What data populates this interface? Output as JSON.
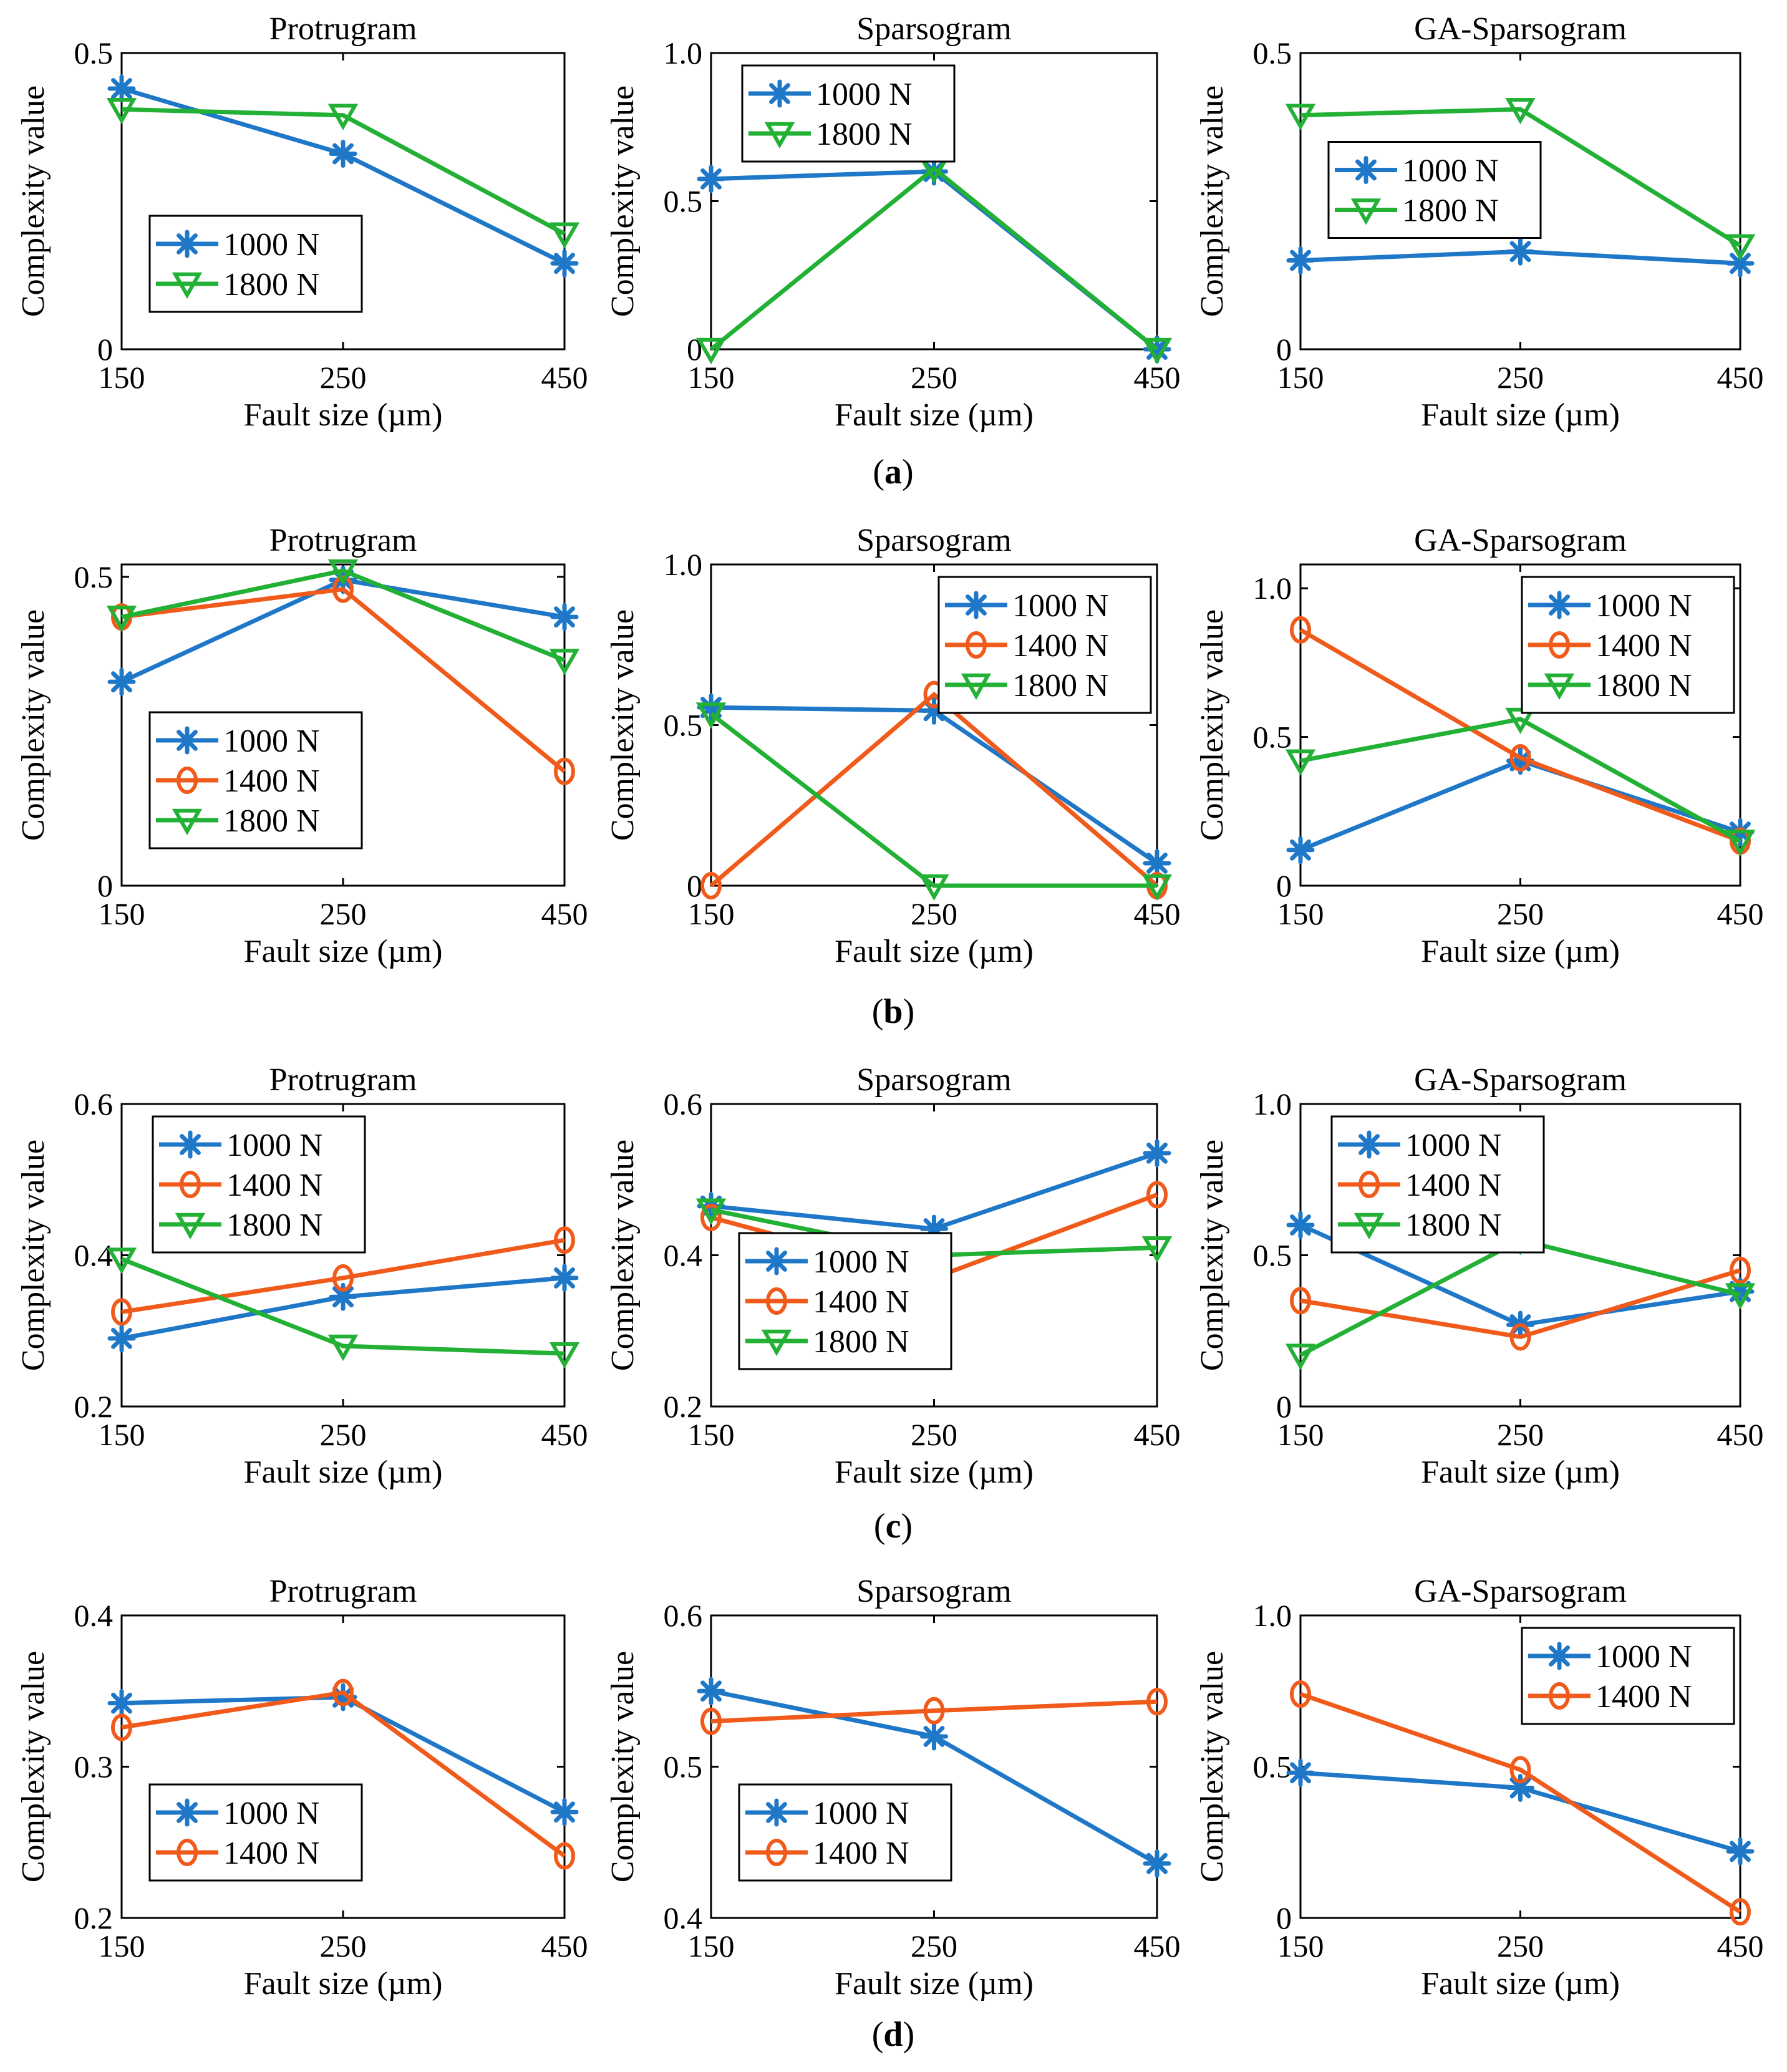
{
  "x_labels": [
    "150",
    "250",
    "450"
  ],
  "x_axis_label": "Fault size (µm)",
  "y_axis_label": "Complexity value",
  "series_styles": {
    "1000 N": {
      "color": "#1f77c8",
      "marker": "star"
    },
    "1400 N": {
      "color": "#f05a1a",
      "marker": "circle"
    },
    "1800 N": {
      "color": "#22b035",
      "marker": "triangle"
    }
  },
  "rows": [
    {
      "label": "(a)",
      "label_letter": "a"
    },
    {
      "label": "(b)",
      "label_letter": "b"
    },
    {
      "label": "(c)",
      "label_letter": "c"
    },
    {
      "label": "(d)",
      "label_letter": "d"
    }
  ],
  "chart_data": [
    {
      "type": "line",
      "row": 0,
      "col": 0,
      "title": "Protrugram",
      "xlabel": "Fault size (µm)",
      "ylabel": "Complexity value",
      "categories": [
        "150",
        "250",
        "450"
      ],
      "ylim": [
        0,
        0.5
      ],
      "yticks": [
        "0",
        "0.5"
      ],
      "ytick_values": [
        0,
        0.5
      ],
      "legend_position": "bottom-left",
      "series": [
        {
          "name": "1000 N",
          "values": [
            0.44,
            0.33,
            0.145
          ]
        },
        {
          "name": "1800 N",
          "values": [
            0.405,
            0.395,
            0.195
          ]
        }
      ]
    },
    {
      "type": "line",
      "row": 0,
      "col": 1,
      "title": "Sparsogram",
      "xlabel": "Fault size (µm)",
      "ylabel": "Complexity value",
      "categories": [
        "150",
        "250",
        "450"
      ],
      "ylim": [
        0,
        1.0
      ],
      "yticks": [
        "0",
        "0.5",
        "1.0"
      ],
      "ytick_values": [
        0,
        0.5,
        1.0
      ],
      "legend_position": "top-left",
      "series": [
        {
          "name": "1000 N",
          "values": [
            0.575,
            0.6,
            0.0
          ]
        },
        {
          "name": "1800 N",
          "values": [
            0.0,
            0.61,
            0.0
          ]
        }
      ]
    },
    {
      "type": "line",
      "row": 0,
      "col": 2,
      "title": "GA-Sparsogram",
      "xlabel": "Fault size (µm)",
      "ylabel": "Complexity value",
      "categories": [
        "150",
        "250",
        "450"
      ],
      "ylim": [
        0,
        0.5
      ],
      "yticks": [
        "0",
        "0.5"
      ],
      "ytick_values": [
        0,
        0.5
      ],
      "legend_position": "middle-left",
      "series": [
        {
          "name": "1000 N",
          "values": [
            0.15,
            0.165,
            0.145
          ]
        },
        {
          "name": "1800 N",
          "values": [
            0.395,
            0.405,
            0.175
          ]
        }
      ]
    },
    {
      "type": "line",
      "row": 1,
      "col": 0,
      "title": "Protrugram",
      "xlabel": "Fault size (µm)",
      "ylabel": "Complexity value",
      "categories": [
        "150",
        "250",
        "450"
      ],
      "ylim": [
        0,
        0.52
      ],
      "yticks": [
        "0",
        "0.5"
      ],
      "ytick_values": [
        0,
        0.5
      ],
      "legend_position": "bottom-left",
      "series": [
        {
          "name": "1000 N",
          "values": [
            0.33,
            0.495,
            0.435
          ]
        },
        {
          "name": "1400 N",
          "values": [
            0.435,
            0.48,
            0.185
          ]
        },
        {
          "name": "1800 N",
          "values": [
            0.435,
            0.51,
            0.365
          ]
        }
      ]
    },
    {
      "type": "line",
      "row": 1,
      "col": 1,
      "title": "Sparsogram",
      "xlabel": "Fault size (µm)",
      "ylabel": "Complexity value",
      "categories": [
        "150",
        "250",
        "450"
      ],
      "ylim": [
        0,
        1.0
      ],
      "yticks": [
        "0",
        "0.5",
        "1.0"
      ],
      "ytick_values": [
        0,
        0.5,
        1.0
      ],
      "legend_position": "top-right",
      "series": [
        {
          "name": "1000 N",
          "values": [
            0.555,
            0.545,
            0.07
          ]
        },
        {
          "name": "1400 N",
          "values": [
            0.0,
            0.595,
            0.0
          ]
        },
        {
          "name": "1800 N",
          "values": [
            0.535,
            0.0,
            0.0
          ]
        }
      ]
    },
    {
      "type": "line",
      "row": 1,
      "col": 2,
      "title": "GA-Sparsogram",
      "xlabel": "Fault size (µm)",
      "ylabel": "Complexity value",
      "categories": [
        "150",
        "250",
        "450"
      ],
      "ylim": [
        0,
        1.08
      ],
      "yticks": [
        "0",
        "0.5",
        "1.0"
      ],
      "ytick_values": [
        0,
        0.5,
        1.0
      ],
      "legend_position": "top-right",
      "series": [
        {
          "name": "1000 N",
          "values": [
            0.12,
            0.42,
            0.18
          ]
        },
        {
          "name": "1400 N",
          "values": [
            0.86,
            0.43,
            0.15
          ]
        },
        {
          "name": "1800 N",
          "values": [
            0.42,
            0.56,
            0.15
          ]
        }
      ]
    },
    {
      "type": "line",
      "row": 2,
      "col": 0,
      "title": "Protrugram",
      "xlabel": "Fault size (µm)",
      "ylabel": "Complexity value",
      "categories": [
        "150",
        "250",
        "450"
      ],
      "ylim": [
        0.2,
        0.6
      ],
      "yticks": [
        "0.2",
        "0.4",
        "0.6"
      ],
      "ytick_values": [
        0.2,
        0.4,
        0.6
      ],
      "legend_position": "top-left",
      "series": [
        {
          "name": "1000 N",
          "values": [
            0.29,
            0.345,
            0.37
          ]
        },
        {
          "name": "1400 N",
          "values": [
            0.325,
            0.37,
            0.42
          ]
        },
        {
          "name": "1800 N",
          "values": [
            0.395,
            0.28,
            0.27
          ]
        }
      ]
    },
    {
      "type": "line",
      "row": 2,
      "col": 1,
      "title": "Sparsogram",
      "xlabel": "Fault size (µm)",
      "ylabel": "Complexity value",
      "categories": [
        "150",
        "250",
        "450"
      ],
      "ylim": [
        0.2,
        0.6
      ],
      "yticks": [
        "0.2",
        "0.4",
        "0.6"
      ],
      "ytick_values": [
        0.2,
        0.4,
        0.6
      ],
      "legend_position": "bottom-left",
      "series": [
        {
          "name": "1000 N",
          "values": [
            0.465,
            0.435,
            0.535
          ]
        },
        {
          "name": "1400 N",
          "values": [
            0.45,
            0.37,
            0.48
          ]
        },
        {
          "name": "1800 N",
          "values": [
            0.46,
            0.4,
            0.41
          ]
        }
      ]
    },
    {
      "type": "line",
      "row": 2,
      "col": 2,
      "title": "GA-Sparsogram",
      "xlabel": "Fault size (µm)",
      "ylabel": "Complexity value",
      "categories": [
        "150",
        "250",
        "450"
      ],
      "ylim": [
        0,
        1.0
      ],
      "yticks": [
        "0",
        "0.5",
        "1.0"
      ],
      "ytick_values": [
        0,
        0.5,
        1.0
      ],
      "legend_position": "top-left",
      "series": [
        {
          "name": "1000 N",
          "values": [
            0.6,
            0.27,
            0.38
          ]
        },
        {
          "name": "1400 N",
          "values": [
            0.35,
            0.23,
            0.45
          ]
        },
        {
          "name": "1800 N",
          "values": [
            0.17,
            0.55,
            0.37
          ]
        }
      ]
    },
    {
      "type": "line",
      "row": 3,
      "col": 0,
      "title": "Protrugram",
      "xlabel": "Fault size (µm)",
      "ylabel": "Complexity value",
      "categories": [
        "150",
        "250",
        "450"
      ],
      "ylim": [
        0.2,
        0.4
      ],
      "yticks": [
        "0.2",
        "0.3",
        "0.4"
      ],
      "ytick_values": [
        0.2,
        0.3,
        0.4
      ],
      "legend_position": "bottom-left",
      "series": [
        {
          "name": "1000 N",
          "values": [
            0.342,
            0.346,
            0.27
          ]
        },
        {
          "name": "1400 N",
          "values": [
            0.326,
            0.349,
            0.241
          ]
        }
      ]
    },
    {
      "type": "line",
      "row": 3,
      "col": 1,
      "title": "Sparsogram",
      "xlabel": "Fault size (µm)",
      "ylabel": "Complexity value",
      "categories": [
        "150",
        "250",
        "450"
      ],
      "ylim": [
        0.4,
        0.6
      ],
      "yticks": [
        "0.4",
        "0.5",
        "0.6"
      ],
      "ytick_values": [
        0.4,
        0.5,
        0.6
      ],
      "legend_position": "bottom-left",
      "series": [
        {
          "name": "1000 N",
          "values": [
            0.55,
            0.52,
            0.436
          ]
        },
        {
          "name": "1400 N",
          "values": [
            0.53,
            0.537,
            0.543
          ]
        }
      ]
    },
    {
      "type": "line",
      "row": 3,
      "col": 2,
      "title": "GA-Sparsogram",
      "xlabel": "Fault size (µm)",
      "ylabel": "Complexity value",
      "categories": [
        "150",
        "250",
        "450"
      ],
      "ylim": [
        0,
        1.0
      ],
      "yticks": [
        "0",
        "0.5",
        "1.0"
      ],
      "ytick_values": [
        0,
        0.5,
        1.0
      ],
      "legend_position": "top-right",
      "series": [
        {
          "name": "1000 N",
          "values": [
            0.48,
            0.43,
            0.22
          ]
        },
        {
          "name": "1400 N",
          "values": [
            0.74,
            0.49,
            0.02
          ]
        }
      ]
    }
  ]
}
